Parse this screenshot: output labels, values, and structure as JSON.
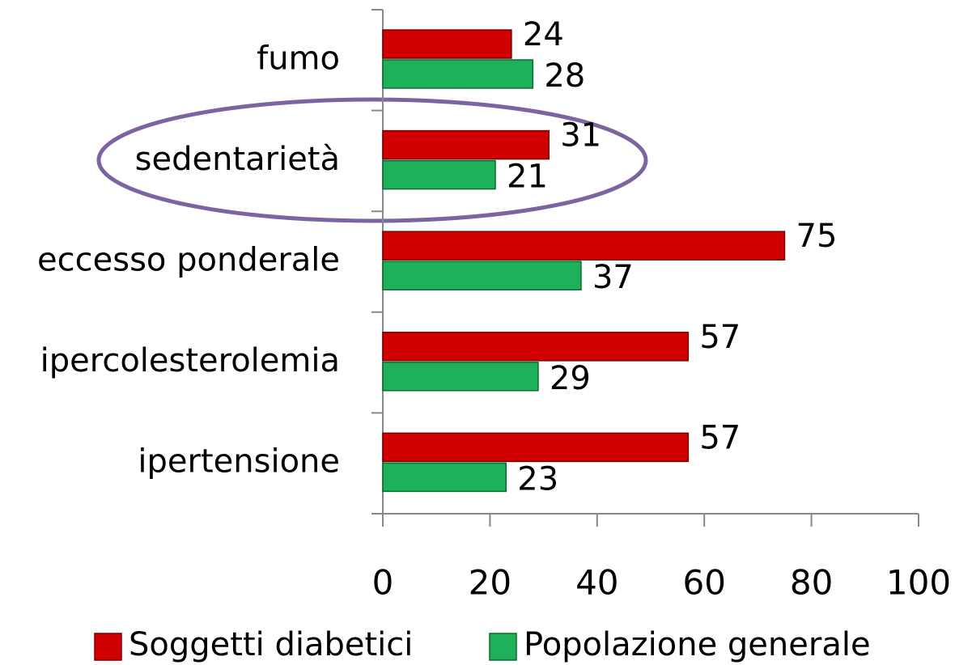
{
  "chart_data": {
    "type": "bar",
    "orientation": "horizontal",
    "categories": [
      "fumo",
      "sedentarietà",
      "eccesso ponderale",
      "ipercolesterolemia",
      "ipertensione"
    ],
    "series": [
      {
        "name": "Soggetti diabetici",
        "color": "#d10000",
        "values": [
          24,
          31,
          75,
          57,
          57
        ]
      },
      {
        "name": "Popolazione generale",
        "color": "#1db25a",
        "values": [
          28,
          21,
          37,
          29,
          23
        ]
      }
    ],
    "xlim": [
      0,
      100
    ],
    "xticks": [
      0,
      20,
      40,
      60,
      80,
      100
    ],
    "legend": "bottom"
  }
}
